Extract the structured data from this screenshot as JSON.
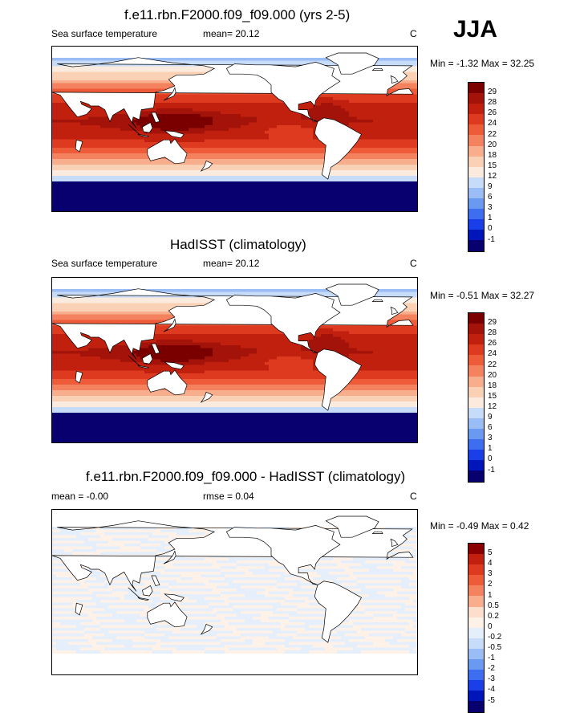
{
  "season": "JJA",
  "palettes": {
    "sst": [
      "#08006e",
      "#0016b8",
      "#1a3ee8",
      "#3d6ef0",
      "#6a99f2",
      "#9bbdf5",
      "#c6dcf8",
      "#fbeade",
      "#fbd1b6",
      "#f8ae8c",
      "#f4825e",
      "#ee5b38",
      "#de3a20",
      "#c2200f",
      "#a3130a",
      "#7a0000"
    ],
    "diff": [
      "#08006e",
      "#0016b8",
      "#1a3ee8",
      "#3d6ef0",
      "#6a99f2",
      "#9bbdf5",
      "#c6dcf8",
      "#e5eefb",
      "#fdf1e8",
      "#fbdfcc",
      "#f8ae8c",
      "#f4825e",
      "#ee5b38",
      "#de3a20",
      "#c2200f",
      "#8a0000"
    ]
  },
  "panels": [
    {
      "title": "f.e11.rbn.F2000.f09_f09.000 (yrs 2-5)",
      "variable": "Sea surface temperature",
      "stat_text": "mean=  20.12",
      "units": "C",
      "range_text": "Min =  -1.32 Max =  32.25",
      "field": "sst",
      "palette": "sst",
      "contour_levels": [
        "29",
        "28",
        "26",
        "24",
        "22",
        "20",
        "18",
        "15",
        "12",
        "9",
        "6",
        "3",
        "1",
        "0",
        "-1"
      ]
    },
    {
      "title": "HadISST (climatology)",
      "variable": "Sea surface temperature",
      "stat_text": "mean=  20.12",
      "units": "C",
      "range_text": "Min =  -0.51 Max =  32.27",
      "field": "sst",
      "palette": "sst",
      "contour_levels": [
        "29",
        "28",
        "26",
        "24",
        "22",
        "20",
        "18",
        "15",
        "12",
        "9",
        "6",
        "3",
        "1",
        "0",
        "-1"
      ]
    },
    {
      "title": "f.e11.rbn.F2000.f09_f09.000 - HadISST (climatology)",
      "stat_text": "mean =  -0.00",
      "rmse_text": "rmse =   0.04",
      "units": "C",
      "range_text": "Min =  -0.49 Max =   0.42",
      "field": "diff",
      "palette": "diff",
      "contour_levels": [
        "5",
        "4",
        "3",
        "2",
        "1",
        "0.5",
        "0.2",
        "0",
        "-0.2",
        "-0.5",
        "-1",
        "-2",
        "-3",
        "-4",
        "-5"
      ]
    }
  ]
}
